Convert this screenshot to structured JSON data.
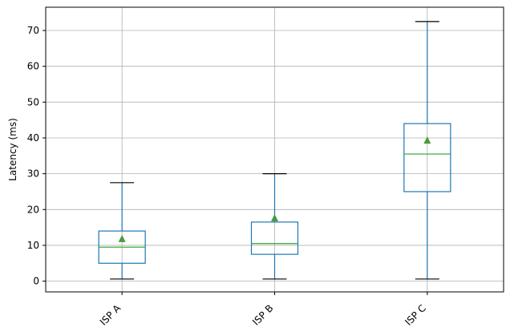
{
  "chart_data": {
    "type": "box",
    "ylabel": "Latency (ms)",
    "xlabel": "",
    "title": "",
    "ylim": [
      -3,
      76.5
    ],
    "yticks": [
      0,
      10,
      20,
      30,
      40,
      50,
      60,
      70
    ],
    "grid": true,
    "categories": [
      "ISP A",
      "ISP B",
      "ISP C"
    ],
    "boxes": [
      {
        "category": "ISP A",
        "whisker_low": 0.6,
        "q1": 5.0,
        "median": 9.5,
        "q3": 14.0,
        "whisker_high": 27.5,
        "mean": 11.8
      },
      {
        "category": "ISP B",
        "whisker_low": 0.6,
        "q1": 7.5,
        "median": 10.5,
        "q3": 16.5,
        "whisker_high": 30.0,
        "mean": 17.6
      },
      {
        "category": "ISP C",
        "whisker_low": 0.6,
        "q1": 25.0,
        "median": 35.5,
        "q3": 44.0,
        "whisker_high": 72.5,
        "mean": 39.3
      }
    ],
    "colors": {
      "box": "#1f77b4",
      "median": "#2ca02c",
      "mean_marker": "#4a9a3a",
      "whisker_cap": "#000000",
      "grid": "#b0b0b0"
    }
  }
}
